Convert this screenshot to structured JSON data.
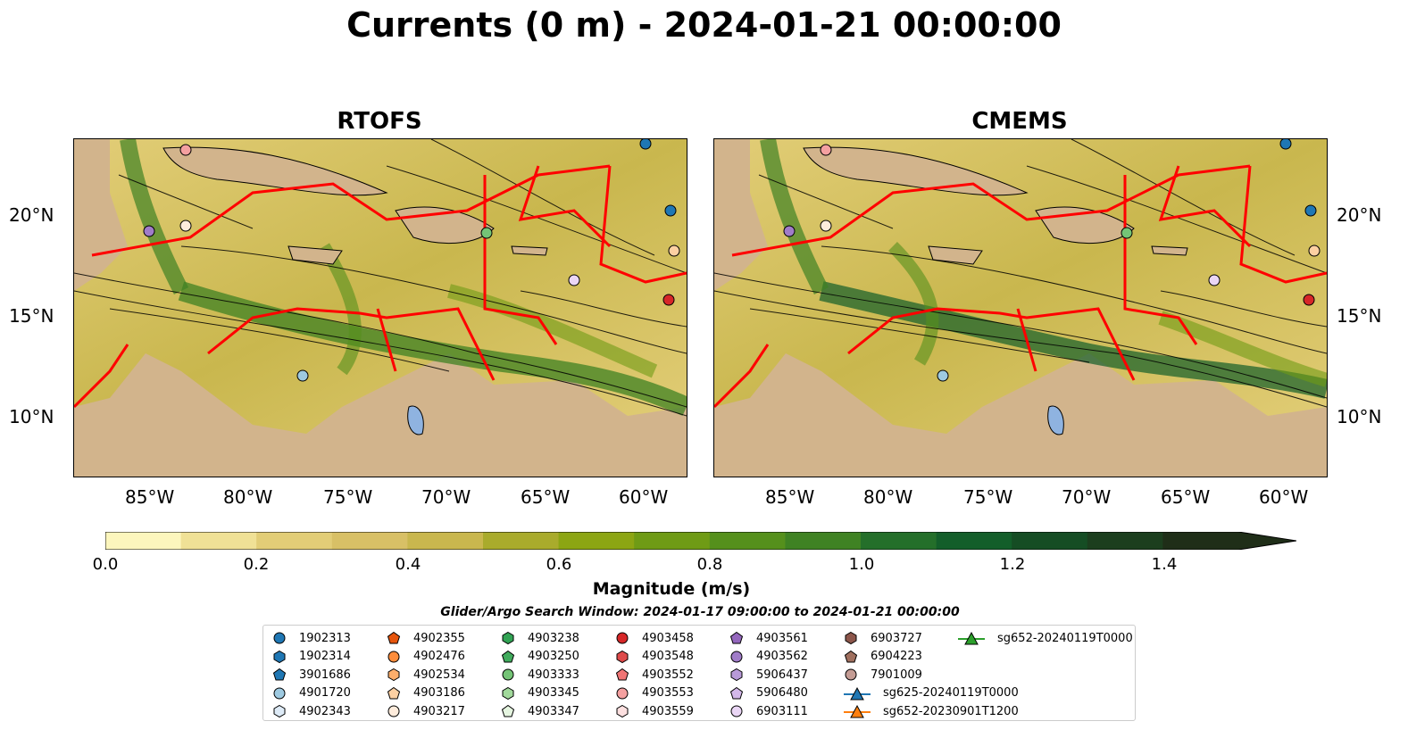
{
  "title": "Currents (0 m) - 2024-01-21 00:00:00",
  "panels": [
    {
      "title": "RTOFS"
    },
    {
      "title": "CMEMS"
    }
  ],
  "lat_ticks": [
    "20°N",
    "15°N",
    "10°N"
  ],
  "lon_ticks": [
    "85°W",
    "80°W",
    "75°W",
    "70°W",
    "65°W",
    "60°W"
  ],
  "colorbar": {
    "label": "Magnitude (m/s)",
    "ticks": [
      "0.0",
      "0.2",
      "0.4",
      "0.6",
      "0.8",
      "1.0",
      "1.2",
      "1.4"
    ],
    "colors": [
      "#fcf6bd",
      "#f0e196",
      "#e2cd77",
      "#d8c066",
      "#c9b74e",
      "#a9ab2c",
      "#8ca513",
      "#6f9b15",
      "#55901c",
      "#3f8223",
      "#246f2a",
      "#135e2a",
      "#154d24",
      "#1c3e1e",
      "#1f2e18"
    ]
  },
  "search_window": "Glider/Argo Search Window: 2024-01-17 09:00:00 to 2024-01-21 00:00:00",
  "legend": [
    {
      "label": "1902313",
      "marker": "circle",
      "color": "#1f77b4"
    },
    {
      "label": "1902314",
      "marker": "hexagon",
      "color": "#1f77b4"
    },
    {
      "label": "3901686",
      "marker": "pentagon",
      "color": "#1f77b4"
    },
    {
      "label": "4901720",
      "marker": "circle",
      "color": "#9ecae1"
    },
    {
      "label": "4902343",
      "marker": "hexagon",
      "color": "#deebf7"
    },
    {
      "label": "4902355",
      "marker": "pentagon",
      "color": "#e6550d"
    },
    {
      "label": "4902476",
      "marker": "circle",
      "color": "#fd8d3c"
    },
    {
      "label": "4902534",
      "marker": "hexagon",
      "color": "#fdae6b"
    },
    {
      "label": "4903186",
      "marker": "pentagon",
      "color": "#fdd0a2"
    },
    {
      "label": "4903217",
      "marker": "circle",
      "color": "#feecdc"
    },
    {
      "label": "4903238",
      "marker": "hexagon",
      "color": "#31a354"
    },
    {
      "label": "4903250",
      "marker": "pentagon",
      "color": "#41ab5d"
    },
    {
      "label": "4903333",
      "marker": "circle",
      "color": "#74c476"
    },
    {
      "label": "4903345",
      "marker": "hexagon",
      "color": "#a1d99b"
    },
    {
      "label": "4903347",
      "marker": "pentagon",
      "color": "#e5f5e0"
    },
    {
      "label": "4903458",
      "marker": "circle",
      "color": "#d62728"
    },
    {
      "label": "4903548",
      "marker": "hexagon",
      "color": "#de4a4a"
    },
    {
      "label": "4903552",
      "marker": "pentagon",
      "color": "#f07575"
    },
    {
      "label": "4903553",
      "marker": "circle",
      "color": "#f4a0a0"
    },
    {
      "label": "4903559",
      "marker": "hexagon",
      "color": "#fde0e0"
    },
    {
      "label": "4903561",
      "marker": "pentagon",
      "color": "#9467bd"
    },
    {
      "label": "4903562",
      "marker": "circle",
      "color": "#a07cc8"
    },
    {
      "label": "5906437",
      "marker": "hexagon",
      "color": "#b89ad8"
    },
    {
      "label": "5906480",
      "marker": "pentagon",
      "color": "#d3b8ea"
    },
    {
      "label": "6903111",
      "marker": "circle",
      "color": "#ead6f5"
    },
    {
      "label": "6903727",
      "marker": "hexagon",
      "color": "#8c564b"
    },
    {
      "label": "6904223",
      "marker": "pentagon",
      "color": "#a0705f"
    },
    {
      "label": "7901009",
      "marker": "circle",
      "color": "#c49c94"
    },
    {
      "label": "sg625-20240119T0000",
      "marker": "triangle-line",
      "color": "#1f77b4"
    },
    {
      "label": "sg652-20230901T1200",
      "marker": "triangle-line",
      "color": "#ff7f0e"
    },
    {
      "label": "sg652-20240119T0000",
      "marker": "triangle-line",
      "color": "#2ca02c"
    }
  ],
  "colors": {
    "land": "#d2b48c",
    "boundary": "#ff0000",
    "lake": "#8fb3e0",
    "river": "#a0b4c8"
  }
}
